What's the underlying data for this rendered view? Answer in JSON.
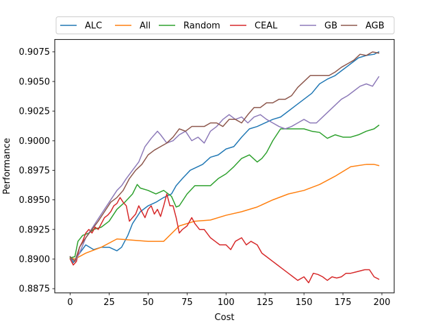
{
  "chart_data": {
    "type": "line",
    "xlabel": "Cost",
    "ylabel": "Performance",
    "xlim": [
      -9.9,
      207.9
    ],
    "ylim": [
      0.88715,
      0.90855
    ],
    "xticks": [
      0,
      25,
      50,
      75,
      100,
      125,
      150,
      175,
      200
    ],
    "xtick_labels": [
      "0",
      "25",
      "50",
      "75",
      "100",
      "125",
      "150",
      "175",
      "200"
    ],
    "yticks": [
      0.8875,
      0.89,
      0.8925,
      0.895,
      0.8975,
      0.9,
      0.9025,
      0.905,
      0.9075
    ],
    "ytick_labels": [
      "0.8875",
      "0.8900",
      "0.8925",
      "0.8950",
      "0.8975",
      "0.9000",
      "0.9025",
      "0.9050",
      "0.9075"
    ],
    "grid": false,
    "legend_position": "top",
    "series": [
      {
        "name": "ALC",
        "color": "#1f77b4",
        "x": [
          0,
          2,
          5,
          10,
          15,
          20,
          25,
          30,
          33,
          37,
          40,
          45,
          50,
          55,
          60,
          65,
          68,
          72,
          77,
          85,
          90,
          95,
          100,
          105,
          110,
          115,
          120,
          125,
          130,
          135,
          140,
          145,
          150,
          155,
          160,
          165,
          170,
          175,
          180,
          185,
          190,
          195,
          198
        ],
        "y": [
          0.8902,
          0.8897,
          0.8903,
          0.8912,
          0.8908,
          0.891,
          0.891,
          0.8907,
          0.891,
          0.892,
          0.893,
          0.894,
          0.8945,
          0.8948,
          0.8952,
          0.8955,
          0.8962,
          0.8968,
          0.8975,
          0.898,
          0.8986,
          0.8988,
          0.8993,
          0.8995,
          0.9003,
          0.901,
          0.9012,
          0.9015,
          0.9018,
          0.902,
          0.9025,
          0.903,
          0.9035,
          0.904,
          0.9048,
          0.9052,
          0.9055,
          0.906,
          0.9065,
          0.907,
          0.9072,
          0.9073,
          0.9075
        ]
      },
      {
        "name": "All",
        "color": "#ff7f0e",
        "x": [
          0,
          3,
          10,
          20,
          30,
          40,
          50,
          60,
          70,
          80,
          90,
          100,
          110,
          120,
          130,
          140,
          150,
          160,
          170,
          180,
          190,
          195,
          198
        ],
        "y": [
          0.8901,
          0.89,
          0.8905,
          0.891,
          0.8917,
          0.8916,
          0.8915,
          0.8915,
          0.8928,
          0.8932,
          0.8933,
          0.8937,
          0.894,
          0.8944,
          0.895,
          0.8955,
          0.8958,
          0.8963,
          0.897,
          0.8978,
          0.898,
          0.898,
          0.8979
        ]
      },
      {
        "name": "Random",
        "color": "#2ca02c",
        "x": [
          0,
          3,
          5,
          8,
          12,
          15,
          20,
          25,
          30,
          35,
          40,
          43,
          45,
          50,
          55,
          60,
          65,
          68,
          70,
          75,
          80,
          85,
          90,
          95,
          100,
          105,
          110,
          115,
          120,
          123,
          126,
          130,
          135,
          140,
          145,
          150,
          155,
          160,
          165,
          170,
          175,
          180,
          185,
          190,
          195,
          198
        ],
        "y": [
          0.8901,
          0.8902,
          0.8915,
          0.892,
          0.8922,
          0.8925,
          0.8927,
          0.8932,
          0.8942,
          0.8948,
          0.8955,
          0.8963,
          0.896,
          0.8958,
          0.8955,
          0.8958,
          0.8953,
          0.8944,
          0.8945,
          0.8955,
          0.8962,
          0.8962,
          0.8962,
          0.8968,
          0.8972,
          0.8978,
          0.8985,
          0.8988,
          0.8982,
          0.8985,
          0.899,
          0.9,
          0.901,
          0.901,
          0.901,
          0.901,
          0.9008,
          0.9007,
          0.9002,
          0.9005,
          0.9003,
          0.9003,
          0.9005,
          0.9008,
          0.901,
          0.9013
        ]
      },
      {
        "name": "CEAL",
        "color": "#d62728",
        "x": [
          0,
          2,
          4,
          6,
          8,
          10,
          12,
          14,
          16,
          18,
          20,
          22,
          24,
          26,
          28,
          30,
          32,
          34,
          36,
          38,
          40,
          42,
          44,
          46,
          48,
          50,
          52,
          54,
          56,
          58,
          60,
          62,
          64,
          66,
          68,
          70,
          72,
          75,
          78,
          80,
          83,
          86,
          90,
          93,
          96,
          100,
          103,
          106,
          110,
          113,
          116,
          120,
          123,
          126,
          130,
          133,
          136,
          140,
          143,
          146,
          150,
          153,
          156,
          159,
          162,
          165,
          168,
          171,
          174,
          177,
          180,
          183,
          186,
          189,
          192,
          195,
          198
        ],
        "y": [
          0.89,
          0.8895,
          0.8898,
          0.891,
          0.8915,
          0.8922,
          0.8925,
          0.8922,
          0.8927,
          0.8925,
          0.893,
          0.8935,
          0.8937,
          0.894,
          0.8945,
          0.8947,
          0.8952,
          0.8948,
          0.8945,
          0.8932,
          0.8935,
          0.8938,
          0.8945,
          0.894,
          0.8935,
          0.8942,
          0.8945,
          0.8938,
          0.8942,
          0.8936,
          0.8945,
          0.8955,
          0.8945,
          0.8945,
          0.8935,
          0.8922,
          0.8925,
          0.8928,
          0.8935,
          0.893,
          0.8925,
          0.8925,
          0.8918,
          0.8915,
          0.8912,
          0.8912,
          0.8908,
          0.8915,
          0.8918,
          0.8912,
          0.8915,
          0.8912,
          0.8905,
          0.8902,
          0.8898,
          0.8895,
          0.8892,
          0.8888,
          0.8885,
          0.8882,
          0.8885,
          0.888,
          0.8888,
          0.8887,
          0.8885,
          0.8882,
          0.8885,
          0.8884,
          0.8885,
          0.8888,
          0.8888,
          0.8889,
          0.889,
          0.8891,
          0.8891,
          0.8885,
          0.8883
        ]
      },
      {
        "name": "GB",
        "color": "#8c79b8",
        "x": [
          0,
          3,
          6,
          10,
          15,
          20,
          25,
          30,
          33,
          36,
          40,
          44,
          48,
          52,
          56,
          58,
          62,
          66,
          70,
          74,
          78,
          82,
          86,
          90,
          94,
          98,
          102,
          106,
          110,
          114,
          118,
          122,
          126,
          130,
          134,
          138,
          142,
          146,
          150,
          154,
          158,
          162,
          166,
          170,
          174,
          178,
          182,
          186,
          190,
          194,
          198
        ],
        "y": [
          0.8902,
          0.8898,
          0.8905,
          0.8918,
          0.8928,
          0.8938,
          0.8948,
          0.8958,
          0.8962,
          0.8968,
          0.8975,
          0.8982,
          0.8995,
          0.9002,
          0.9008,
          0.9005,
          0.8998,
          0.9,
          0.9005,
          0.9008,
          0.9,
          0.9003,
          0.8998,
          0.9008,
          0.9012,
          0.9018,
          0.9022,
          0.9018,
          0.902,
          0.9015,
          0.902,
          0.9022,
          0.9018,
          0.9015,
          0.9012,
          0.901,
          0.9012,
          0.9015,
          0.9018,
          0.9015,
          0.9015,
          0.902,
          0.9025,
          0.903,
          0.9035,
          0.9038,
          0.9042,
          0.9046,
          0.9048,
          0.9046,
          0.9054
        ]
      },
      {
        "name": "AGB",
        "color": "#8c564b",
        "x": [
          0,
          3,
          6,
          10,
          14,
          18,
          22,
          26,
          30,
          34,
          38,
          42,
          46,
          50,
          54,
          58,
          62,
          66,
          70,
          74,
          78,
          82,
          86,
          90,
          94,
          98,
          102,
          106,
          110,
          114,
          118,
          122,
          126,
          130,
          134,
          138,
          142,
          146,
          150,
          154,
          158,
          162,
          166,
          170,
          174,
          178,
          182,
          186,
          190,
          194,
          198
        ],
        "y": [
          0.8902,
          0.8898,
          0.891,
          0.8918,
          0.8925,
          0.8932,
          0.894,
          0.8948,
          0.8952,
          0.8958,
          0.8968,
          0.8975,
          0.898,
          0.8988,
          0.8992,
          0.8995,
          0.8998,
          0.9003,
          0.901,
          0.9008,
          0.9012,
          0.9012,
          0.9012,
          0.9015,
          0.9015,
          0.9012,
          0.9018,
          0.9018,
          0.9015,
          0.9022,
          0.9028,
          0.9028,
          0.9032,
          0.9032,
          0.9035,
          0.9035,
          0.9038,
          0.9045,
          0.905,
          0.9055,
          0.9055,
          0.9055,
          0.9055,
          0.9058,
          0.9062,
          0.9065,
          0.9068,
          0.9073,
          0.9072,
          0.9075,
          0.9074
        ]
      }
    ]
  }
}
